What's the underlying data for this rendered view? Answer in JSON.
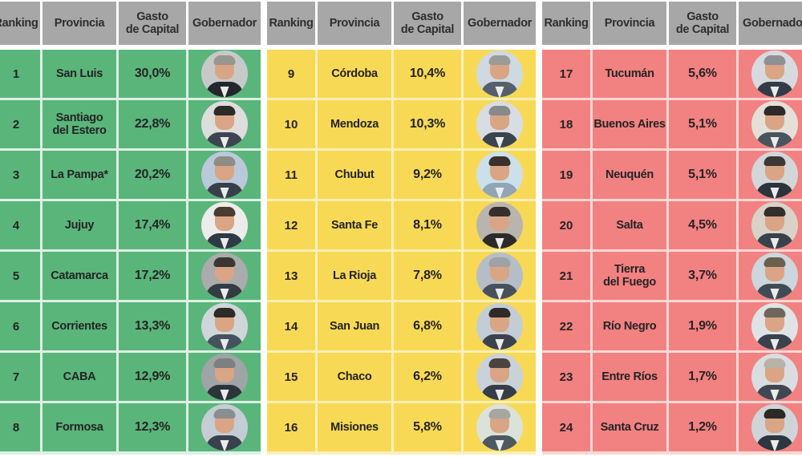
{
  "page": {
    "background": "#ffffff",
    "header_bg": "#a7a7a7"
  },
  "header": {
    "ranking": "Ranking",
    "provincia": "Provincia",
    "gasto_line1": "Gasto",
    "gasto_line2": "de Capital",
    "gobernador": "Gobernador"
  },
  "tables": [
    {
      "id": "ranking-1-8",
      "color": "#5ab57b",
      "tint": "#def0e3",
      "rows": [
        {
          "rank": "1",
          "province": "San Luis",
          "value": "30,0%",
          "avatar": {
            "bg": "#c7c9c8",
            "hair": "#97968f",
            "suit": "#23272b"
          }
        },
        {
          "rank": "2",
          "province": "Santiago\ndel Estero",
          "value": "22,8%",
          "avatar": {
            "bg": "#dddddb",
            "hair": "#2e2a27",
            "suit": "#3c4450"
          }
        },
        {
          "rank": "3",
          "province": "La Pampa*",
          "value": "20,2%",
          "avatar": {
            "bg": "#b9c9d9",
            "hair": "#8d8c86",
            "suit": "#37404a"
          }
        },
        {
          "rank": "4",
          "province": "Jujuy",
          "value": "17,4%",
          "avatar": {
            "bg": "#ececea",
            "hair": "#4a3c31",
            "suit": "#2f3a44"
          }
        },
        {
          "rank": "5",
          "province": "Catamarca",
          "value": "17,2%",
          "avatar": {
            "bg": "#a9abac",
            "hair": "#3b3733",
            "suit": "#333b43"
          }
        },
        {
          "rank": "6",
          "province": "Corrientes",
          "value": "13,3%",
          "avatar": {
            "bg": "#cfd6da",
            "hair": "#2e2b28",
            "suit": "#44525e"
          }
        },
        {
          "rank": "7",
          "province": "CABA",
          "value": "12,9%",
          "avatar": {
            "bg": "#9fa4a6",
            "hair": "#7d7f80",
            "suit": "#2b333b"
          }
        },
        {
          "rank": "8",
          "province": "Formosa",
          "value": "12,3%",
          "avatar": {
            "bg": "#c4cdd4",
            "hair": "#8b8e90",
            "suit": "#39424c"
          }
        }
      ]
    },
    {
      "id": "ranking-9-16",
      "color": "#f8d955",
      "tint": "#fcf0b8",
      "rows": [
        {
          "rank": "9",
          "province": "Córdoba",
          "value": "10,4%",
          "avatar": {
            "bg": "#cfd9e2",
            "hair": "#9b9b97",
            "suit": "#55606c"
          }
        },
        {
          "rank": "10",
          "province": "Mendoza",
          "value": "10,3%",
          "avatar": {
            "bg": "#d7dde2",
            "hair": "#87898b",
            "suit": "#3b444e"
          }
        },
        {
          "rank": "11",
          "province": "Chubut",
          "value": "9,2%",
          "avatar": {
            "bg": "#cce0ea",
            "hair": "#3a322c",
            "suit": "#8fa6b5"
          }
        },
        {
          "rank": "12",
          "province": "Santa Fe",
          "value": "8,1%",
          "avatar": {
            "bg": "#b9b4ae",
            "hair": "#35302c",
            "suit": "#2d2a27"
          }
        },
        {
          "rank": "13",
          "province": "La Rioja",
          "value": "7,8%",
          "avatar": {
            "bg": "#b5bec6",
            "hair": "#9fa2a4",
            "suit": "#47515b"
          }
        },
        {
          "rank": "14",
          "province": "San Juan",
          "value": "6,8%",
          "avatar": {
            "bg": "#c2cdd5",
            "hair": "#2f2b28",
            "suit": "#3a434d"
          }
        },
        {
          "rank": "15",
          "province": "Chaco",
          "value": "6,2%",
          "avatar": {
            "bg": "#c8d2d8",
            "hair": "#4b4440",
            "suit": "#353e47"
          }
        },
        {
          "rank": "16",
          "province": "Misiones",
          "value": "5,8%",
          "avatar": {
            "bg": "#dbe2da",
            "hair": "#a5a6a2",
            "suit": "#4e585f"
          }
        }
      ]
    },
    {
      "id": "ranking-17-24",
      "color": "#f28181",
      "tint": "#fad8d4",
      "rows": [
        {
          "rank": "17",
          "province": "Tucumán",
          "value": "5,6%",
          "avatar": {
            "bg": "#d6dade",
            "hair": "#8e9092",
            "suit": "#333c46"
          }
        },
        {
          "rank": "18",
          "province": "Buenos Aires",
          "value": "5,1%",
          "avatar": {
            "bg": "#e4e0d8",
            "hair": "#2e2a27",
            "suit": "#4a545e"
          }
        },
        {
          "rank": "19",
          "province": "Neuquén",
          "value": "5,1%",
          "avatar": {
            "bg": "#d2d6d9",
            "hair": "#3c3835",
            "suit": "#2b333c"
          }
        },
        {
          "rank": "20",
          "province": "Salta",
          "value": "4,5%",
          "avatar": {
            "bg": "#d9d2c8",
            "hair": "#332f2b",
            "suit": "#39424c"
          }
        },
        {
          "rank": "21",
          "province": "Tierra\ndel Fuego",
          "value": "3,7%",
          "avatar": {
            "bg": "#cdd6dc",
            "hair": "#6b5f4e",
            "suit": "#414b55"
          }
        },
        {
          "rank": "22",
          "province": "Río Negro",
          "value": "1,9%",
          "avatar": {
            "bg": "#dfe3e6",
            "hair": "#6e665e",
            "suit": "#39424c"
          }
        },
        {
          "rank": "23",
          "province": "Entre Ríos",
          "value": "1,7%",
          "avatar": {
            "bg": "#d9dde0",
            "hair": "#b9b2a6",
            "suit": "#3f4852"
          }
        },
        {
          "rank": "24",
          "province": "Santa Cruz",
          "value": "1,2%",
          "avatar": {
            "bg": "#cfd4d8",
            "hair": "#2b2825",
            "suit": "#2e3740"
          }
        }
      ]
    }
  ],
  "chart_data": {
    "type": "table",
    "columns": [
      "Ranking",
      "Provincia",
      "Gasto de Capital",
      "Gobernador"
    ],
    "groups": [
      {
        "color": "#5ab57b",
        "ranks": [
          1,
          2,
          3,
          4,
          5,
          6,
          7,
          8
        ]
      },
      {
        "color": "#f8d955",
        "ranks": [
          9,
          10,
          11,
          12,
          13,
          14,
          15,
          16
        ]
      },
      {
        "color": "#f28181",
        "ranks": [
          17,
          18,
          19,
          20,
          21,
          22,
          23,
          24
        ]
      }
    ],
    "rows": [
      {
        "ranking": 1,
        "provincia": "San Luis",
        "gasto_de_capital_pct": 30.0
      },
      {
        "ranking": 2,
        "provincia": "Santiago del Estero",
        "gasto_de_capital_pct": 22.8
      },
      {
        "ranking": 3,
        "provincia": "La Pampa*",
        "gasto_de_capital_pct": 20.2
      },
      {
        "ranking": 4,
        "provincia": "Jujuy",
        "gasto_de_capital_pct": 17.4
      },
      {
        "ranking": 5,
        "provincia": "Catamarca",
        "gasto_de_capital_pct": 17.2
      },
      {
        "ranking": 6,
        "provincia": "Corrientes",
        "gasto_de_capital_pct": 13.3
      },
      {
        "ranking": 7,
        "provincia": "CABA",
        "gasto_de_capital_pct": 12.9
      },
      {
        "ranking": 8,
        "provincia": "Formosa",
        "gasto_de_capital_pct": 12.3
      },
      {
        "ranking": 9,
        "provincia": "Córdoba",
        "gasto_de_capital_pct": 10.4
      },
      {
        "ranking": 10,
        "provincia": "Mendoza",
        "gasto_de_capital_pct": 10.3
      },
      {
        "ranking": 11,
        "provincia": "Chubut",
        "gasto_de_capital_pct": 9.2
      },
      {
        "ranking": 12,
        "provincia": "Santa Fe",
        "gasto_de_capital_pct": 8.1
      },
      {
        "ranking": 13,
        "provincia": "La Rioja",
        "gasto_de_capital_pct": 7.8
      },
      {
        "ranking": 14,
        "provincia": "San Juan",
        "gasto_de_capital_pct": 6.8
      },
      {
        "ranking": 15,
        "provincia": "Chaco",
        "gasto_de_capital_pct": 6.2
      },
      {
        "ranking": 16,
        "provincia": "Misiones",
        "gasto_de_capital_pct": 5.8
      },
      {
        "ranking": 17,
        "provincia": "Tucumán",
        "gasto_de_capital_pct": 5.6
      },
      {
        "ranking": 18,
        "provincia": "Buenos Aires",
        "gasto_de_capital_pct": 5.1
      },
      {
        "ranking": 19,
        "provincia": "Neuquén",
        "gasto_de_capital_pct": 5.1
      },
      {
        "ranking": 20,
        "provincia": "Salta",
        "gasto_de_capital_pct": 4.5
      },
      {
        "ranking": 21,
        "provincia": "Tierra del Fuego",
        "gasto_de_capital_pct": 3.7
      },
      {
        "ranking": 22,
        "provincia": "Río Negro",
        "gasto_de_capital_pct": 1.9
      },
      {
        "ranking": 23,
        "provincia": "Entre Ríos",
        "gasto_de_capital_pct": 1.7
      },
      {
        "ranking": 24,
        "provincia": "Santa Cruz",
        "gasto_de_capital_pct": 1.2
      }
    ]
  }
}
